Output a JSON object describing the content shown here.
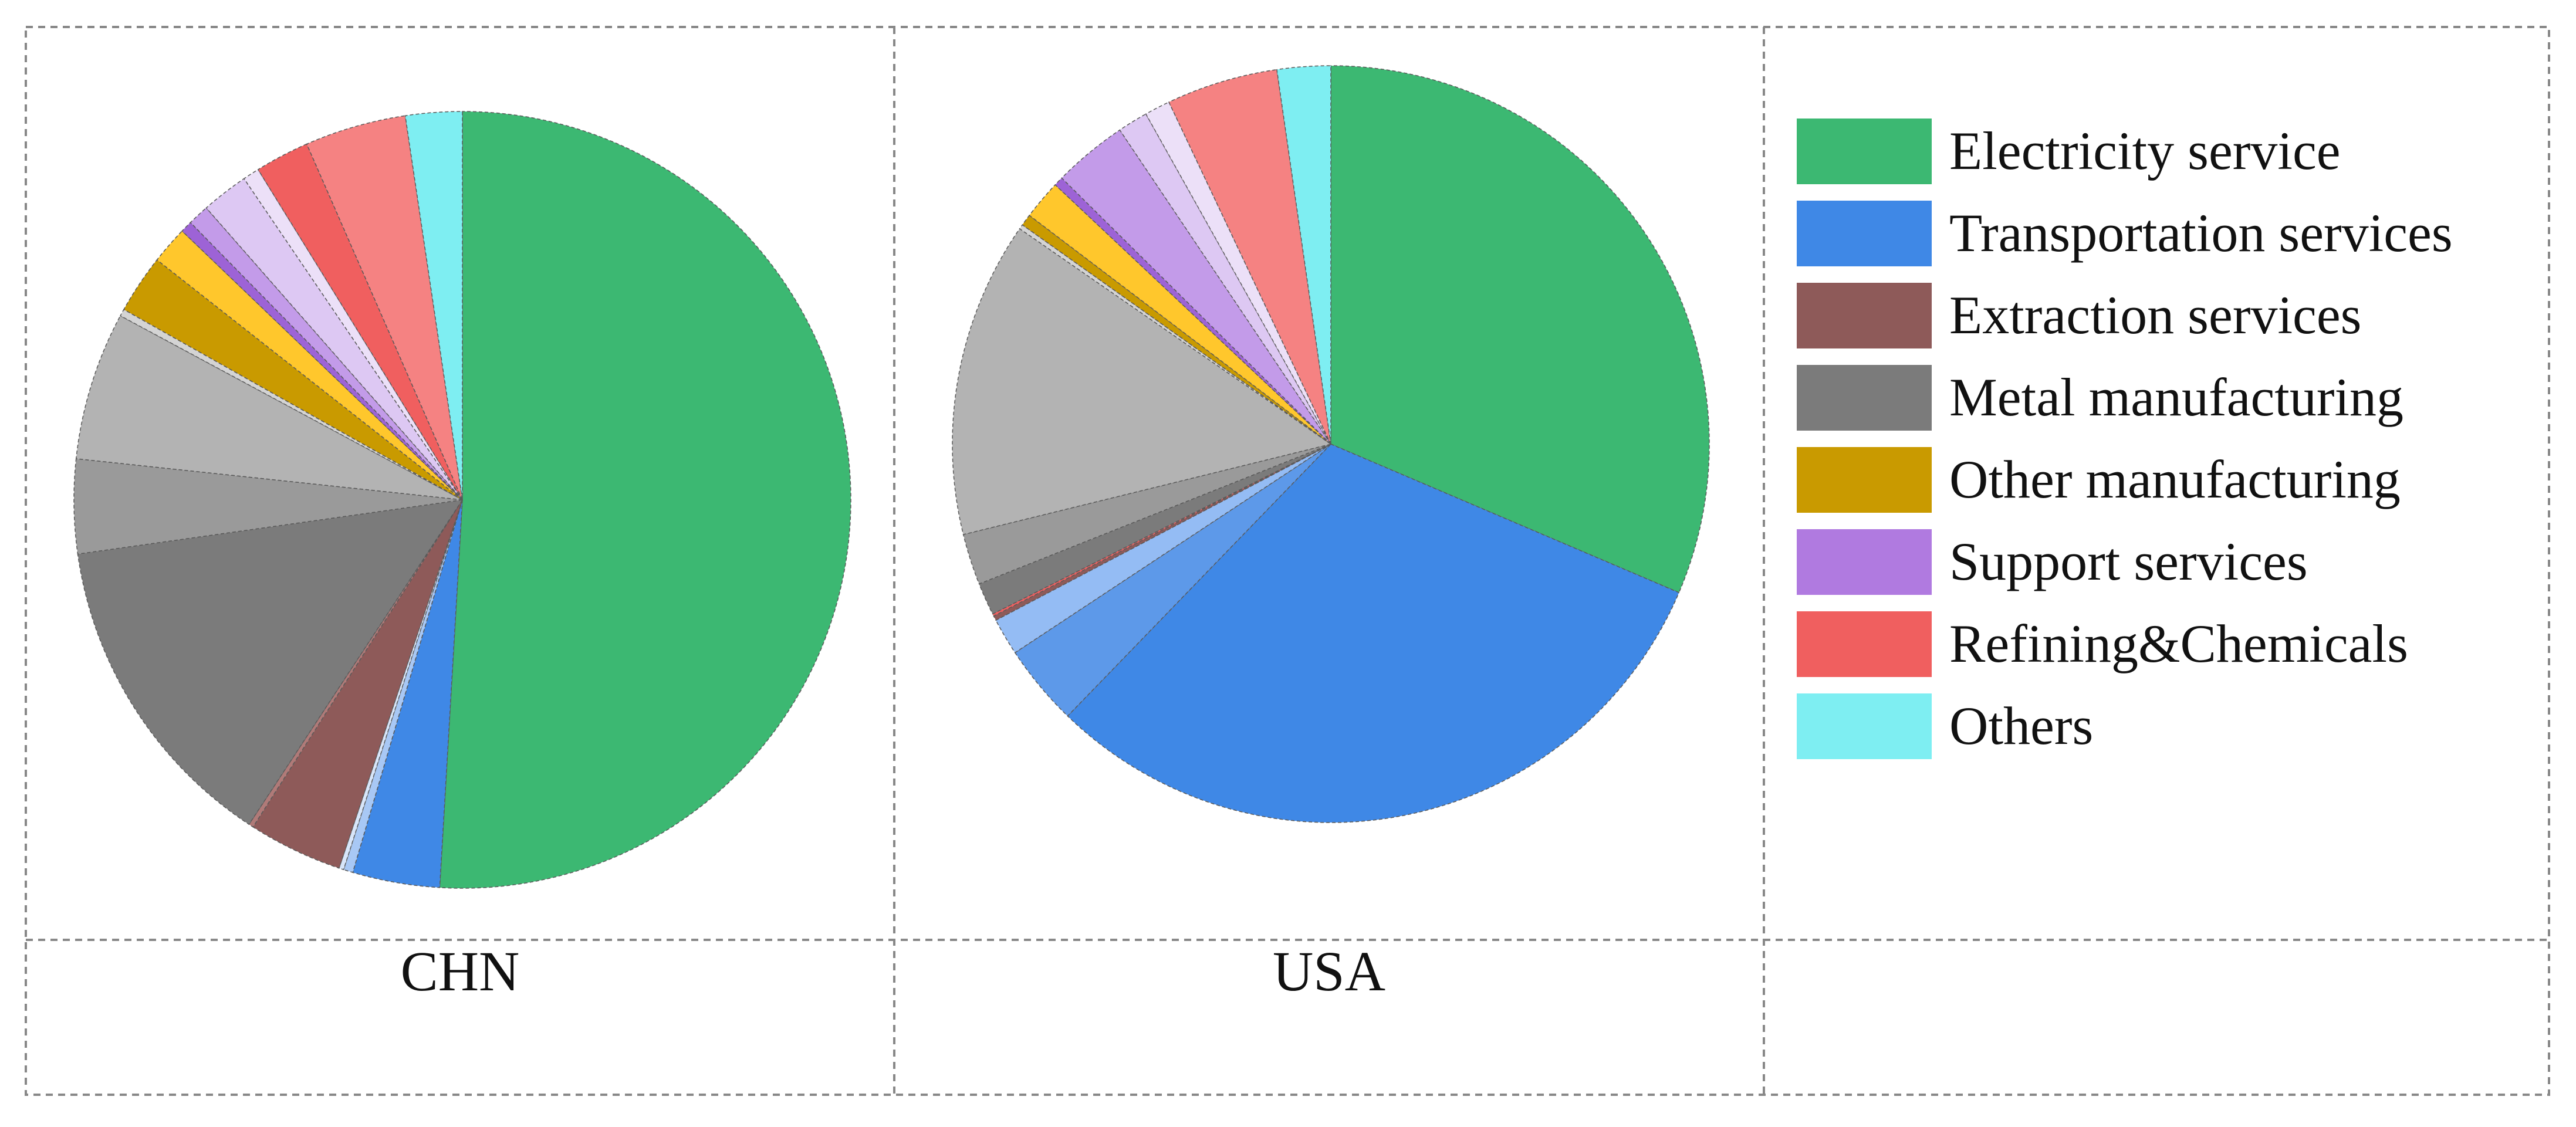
{
  "legend": {
    "items": [
      {
        "label": "Electricity service",
        "color": "#3cb872"
      },
      {
        "label": "Transportation services",
        "color": "#3f88e6"
      },
      {
        "label": "Extraction services",
        "color": "#8e5a59"
      },
      {
        "label": "Metal manufacturing",
        "color": "#7b7b7b"
      },
      {
        "label": "Other manufacturing",
        "color": "#c99a00"
      },
      {
        "label": "Support services",
        "color": "#b07ae0"
      },
      {
        "label": "Refining&Chemicals",
        "color": "#f05f5f"
      },
      {
        "label": "Others",
        "color": "#7eeef2"
      }
    ]
  },
  "panels": {
    "chn_label": "CHN",
    "usa_label": "USA"
  },
  "chart_data": [
    {
      "type": "pie",
      "title": "CHN",
      "start": "12 o'clock, clockwise",
      "slices": [
        {
          "category": "Electricity service",
          "value": 52.0,
          "color": "#3cb872"
        },
        {
          "category": "Transportation services",
          "value": 3.7,
          "color": "#3f88e6"
        },
        {
          "category": "Transportation services",
          "value": 0.4,
          "color": "#a8c8f5"
        },
        {
          "category": "Transportation services",
          "value": 0.2,
          "color": "#d8e6fa"
        },
        {
          "category": "Extraction services",
          "value": 4.0,
          "color": "#8e5a59"
        },
        {
          "category": "Extraction services",
          "value": 0.2,
          "color": "#b07a78"
        },
        {
          "category": "Metal manufacturing",
          "value": 13.8,
          "color": "#7b7b7b"
        },
        {
          "category": "Metal manufacturing",
          "value": 4.0,
          "color": "#9a9a9a"
        },
        {
          "category": "Metal manufacturing",
          "value": 6.3,
          "color": "#b3b3b3"
        },
        {
          "category": "Metal manufacturing",
          "value": 0.3,
          "color": "#d4d4d4"
        },
        {
          "category": "Other manufacturing",
          "value": 2.5,
          "color": "#c99a00"
        },
        {
          "category": "Other manufacturing",
          "value": 1.6,
          "color": "#ffc72c"
        },
        {
          "category": "Support services",
          "value": 0.5,
          "color": "#9d63d6"
        },
        {
          "category": "Support services",
          "value": 0.9,
          "color": "#c39be9"
        },
        {
          "category": "Support services",
          "value": 2.0,
          "color": "#ddc8f3"
        },
        {
          "category": "Support services",
          "value": 0.7,
          "color": "#ece0f8"
        },
        {
          "category": "Refining&Chemicals",
          "value": 2.3,
          "color": "#f05f5f"
        },
        {
          "category": "Refining&Chemicals",
          "value": 4.3,
          "color": "#f58282"
        },
        {
          "category": "Others",
          "value": 2.4,
          "color": "#7eeef2"
        }
      ]
    },
    {
      "type": "pie",
      "title": "USA",
      "start": "12 o'clock, clockwise",
      "slices": [
        {
          "category": "Electricity service",
          "value": 31.7,
          "color": "#3cb872"
        },
        {
          "category": "Transportation services",
          "value": 31.1,
          "color": "#3f88e6"
        },
        {
          "category": "Transportation services",
          "value": 3.5,
          "color": "#5d99e9"
        },
        {
          "category": "Transportation services",
          "value": 1.6,
          "color": "#94bcf4"
        },
        {
          "category": "Extraction services",
          "value": 0.2,
          "color": "#8e5a59"
        },
        {
          "category": "Extraction services",
          "value": 0.1,
          "color": "#f05f5f"
        },
        {
          "category": "Metal manufacturing",
          "value": 1.4,
          "color": "#7b7b7b"
        },
        {
          "category": "Metal manufacturing",
          "value": 2.2,
          "color": "#9a9a9a"
        },
        {
          "category": "Metal manufacturing",
          "value": 13.6,
          "color": "#b3b3b3"
        },
        {
          "category": "Metal manufacturing",
          "value": 0.2,
          "color": "#d4d4d4"
        },
        {
          "category": "Other manufacturing",
          "value": 0.5,
          "color": "#c99a00"
        },
        {
          "category": "Other manufacturing",
          "value": 1.7,
          "color": "#ffc72c"
        },
        {
          "category": "Support services",
          "value": 0.4,
          "color": "#9d63d6"
        },
        {
          "category": "Support services",
          "value": 3.2,
          "color": "#c39be9"
        },
        {
          "category": "Support services",
          "value": 1.3,
          "color": "#ddc8f3"
        },
        {
          "category": "Support services",
          "value": 1.1,
          "color": "#ece0f8"
        },
        {
          "category": "Refining&Chemicals",
          "value": 4.8,
          "color": "#f58282"
        },
        {
          "category": "Others",
          "value": 2.3,
          "color": "#7eeef2"
        }
      ]
    }
  ]
}
